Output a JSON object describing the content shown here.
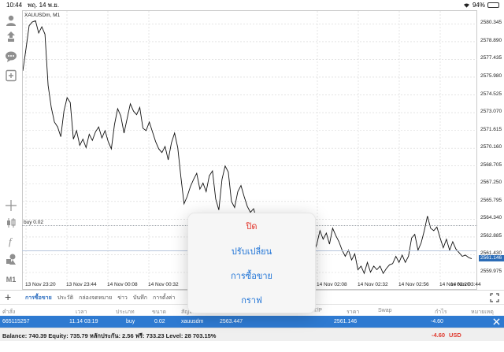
{
  "status_bar": {
    "time": "10:44",
    "date": "พฤ. 14 พ.ย.",
    "battery": "94%",
    "battery_level": 0.94
  },
  "toolbar": {
    "icons": [
      "account-icon",
      "trade-arrows-icon",
      "chat-icon",
      "new-order-icon",
      "crosshair-icon",
      "candles-icon",
      "function-icon",
      "objects-icon"
    ],
    "timeframe": "M1"
  },
  "chart": {
    "symbol_label": "XAUUSDm, M1",
    "buy_label": "buy 0.02",
    "current_bid": "2561.146",
    "price_ticks": [
      "2580.345",
      "2578.890",
      "2577.435",
      "2575.980",
      "2574.525",
      "2573.070",
      "2571.615",
      "2570.160",
      "2568.705",
      "2567.250",
      "2565.795",
      "2564.340",
      "2562.885",
      "2561.430",
      "2559.975"
    ],
    "time_ticks": [
      "13 Nov 23:20",
      "13 Nov 23:44",
      "14 Nov 00:08",
      "14 Nov 00:32",
      "14 Nov 02:08",
      "14 Nov 02:32",
      "14 Nov 02:56",
      "14 Nov 03:20",
      "14 Nov 03:44"
    ]
  },
  "chart_data": {
    "type": "line",
    "title": "XAUUSDm, M1",
    "xlabel": "",
    "ylabel": "",
    "ylim": [
      2559.2,
      2581.4
    ],
    "grid": true,
    "y": [
      2576.5,
      2578.3,
      2580.2,
      2580.5,
      2580.6,
      2579.6,
      2580.1,
      2579.5,
      2575.3,
      2573.5,
      2572.3,
      2571.9,
      2571.1,
      2573.2,
      2574.3,
      2573.9,
      2570.9,
      2571.6,
      2570.4,
      2570.9,
      2570.2,
      2571.3,
      2570.8,
      2571.5,
      2571.9,
      2571.0,
      2571.6,
      2570.7,
      2570.1,
      2572.1,
      2573.4,
      2572.8,
      2571.4,
      2572.6,
      2573.8,
      2573.2,
      2572.9,
      2573.5,
      2571.8,
      2571.6,
      2572.3,
      2571.5,
      2570.7,
      2570.1,
      2569.8,
      2570.3,
      2569.2,
      2570.6,
      2571.4,
      2570.2,
      2567.8,
      2565.6,
      2566.2,
      2567.0,
      2567.6,
      2568.1,
      2566.8,
      2567.3,
      2566.6,
      2567.9,
      2568.3,
      2566.0,
      2565.1,
      2567.6,
      2568.7,
      2568.2,
      2565.8,
      2565.3,
      2566.6,
      2567.1,
      2566.2,
      2565.4,
      2564.9,
      2565.2,
      2564.3,
      2563.5,
      2564.7,
      2564.6,
      2564.2,
      2563.3,
      2563.5,
      2563.1,
      2563.3,
      2562.6,
      2563.4,
      2562.5,
      2563.9,
      2562.6,
      2564.1,
      2562.6,
      2561.9,
      2562.2,
      2561.6,
      2562.3,
      2563.4,
      2562.7,
      2563.2,
      2562.3,
      2563.6,
      2563.0,
      2562.5,
      2561.8,
      2561.3,
      2561.8,
      2561.0,
      2561.5,
      2560.2,
      2560.5,
      2559.9,
      2560.8,
      2560.0,
      2560.5,
      2560.2,
      2560.5,
      2559.9,
      2560.3,
      2560.6,
      2560.7,
      2561.3,
      2560.8,
      2561.4,
      2560.8,
      2561.3,
      2562.8,
      2563.1,
      2561.8,
      2562.4,
      2563.4,
      2564.6,
      2563.6,
      2563.4,
      2563.7,
      2562.8,
      2562.0,
      2562.7,
      2561.8,
      2562.5,
      2561.9,
      2561.6,
      2561.3,
      2561.4,
      2561.2,
      2561.1
    ]
  },
  "popup": {
    "close": "ปิด",
    "modify": "ปรับเปลี่ยน",
    "trade": "การซื้อขาย",
    "chart": "กราฟ"
  },
  "tabs": {
    "items": [
      "การซื้อขาย",
      "ประวัติ",
      "กล่องจดหมาย",
      "ข่าว",
      "บันทึก",
      "การตั้งค่า"
    ]
  },
  "table": {
    "headers": {
      "order": "คำสั่ง",
      "time": "เวลา",
      "type": "ประเภท",
      "size": "ขนาด",
      "symbol": "สัญลักษณ์",
      "tp": "T/P",
      "price": "ราคา",
      "swap": "Swap",
      "profit": "กำไร",
      "comment": "หมายเหตุ"
    },
    "row": {
      "order": "665115257",
      "time": "11.14 03:19",
      "type": "buy",
      "size": "0.02",
      "symbol": "xauusdm",
      "open_price": "2563.447",
      "current_price": "2561.146",
      "profit": "-4.60"
    }
  },
  "balance": {
    "text": "Balance: 740.39 Equity: 735.79 หลักประกัน: 2.56 ฟรี: 733.23 Level: 28 703.15%",
    "profit": "-4.60",
    "currency": "USD"
  },
  "colors": {
    "accent": "#2e7ad1",
    "danger": "#e2342a",
    "line": "#111111"
  }
}
